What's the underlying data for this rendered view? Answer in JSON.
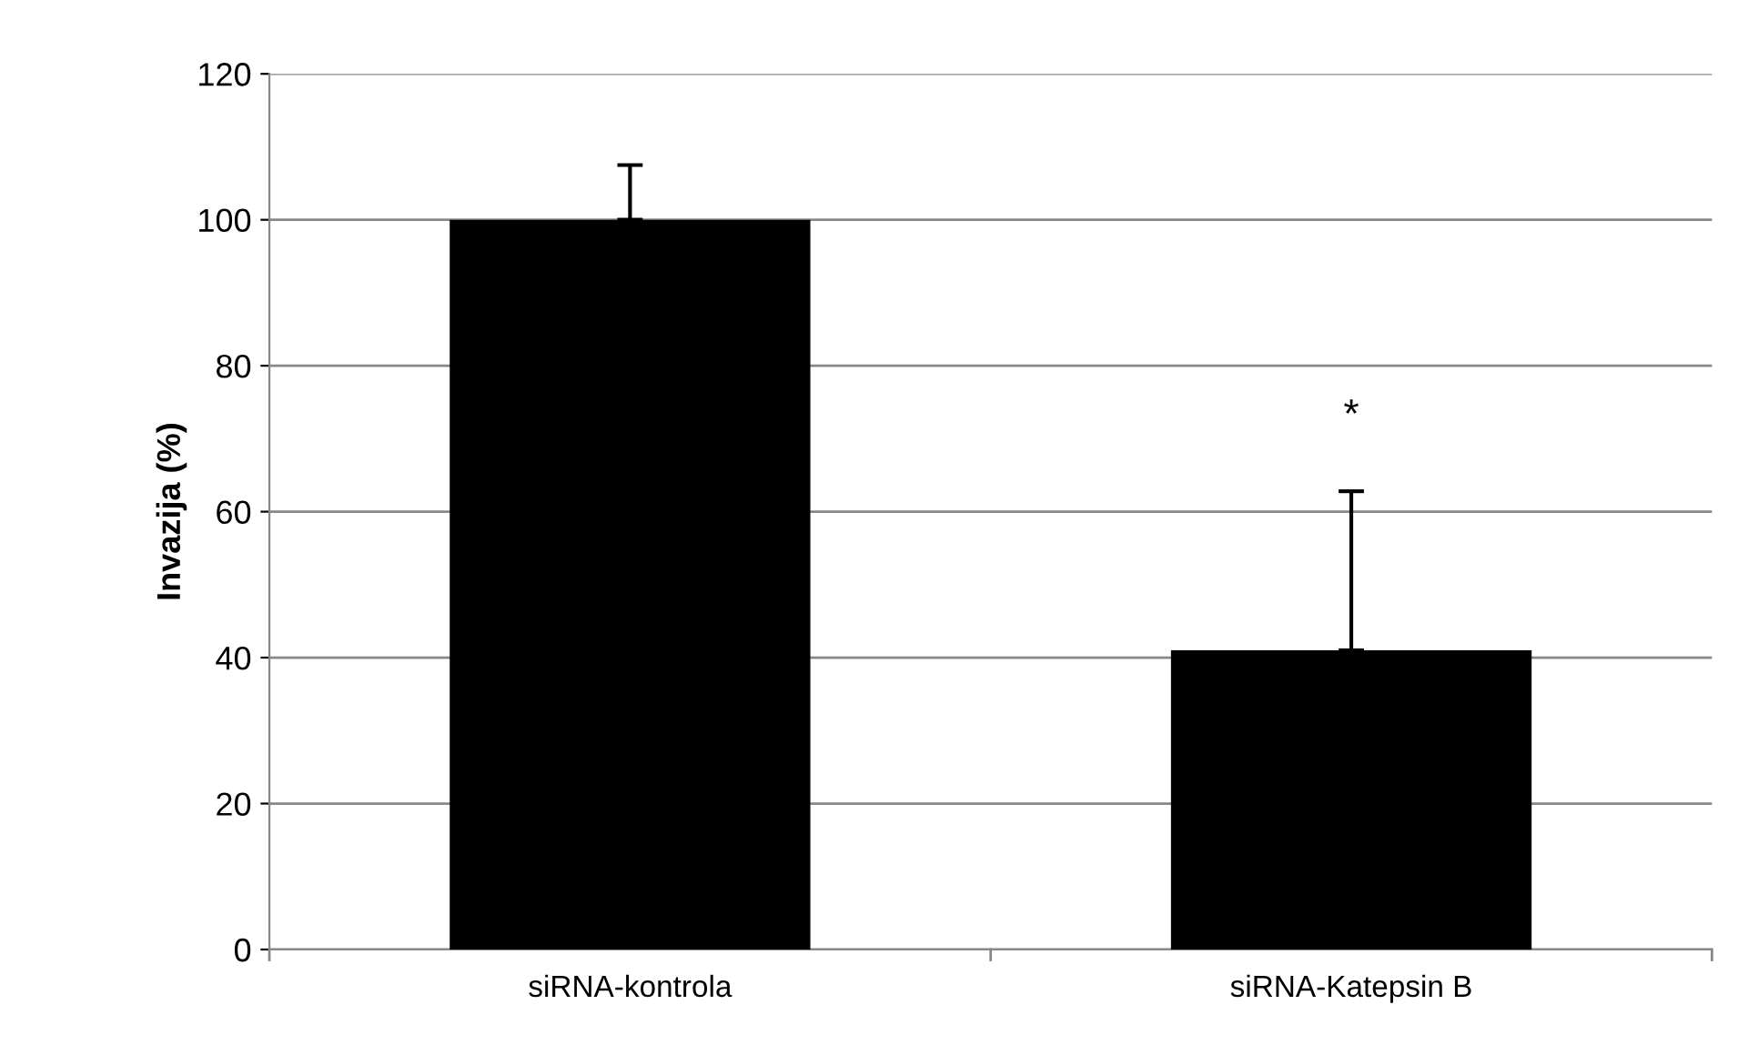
{
  "chart_data": {
    "type": "bar",
    "ylabel": "Invazija (%)",
    "categories": [
      "siRNA-kontrola",
      "siRNA-Katepsin B"
    ],
    "values": [
      100,
      41
    ],
    "errors": [
      [
        100,
        107.5
      ],
      [
        41,
        62.8
      ]
    ],
    "color": "#000000",
    "ylim": [
      0,
      120
    ],
    "yticks": [
      0,
      20,
      40,
      60,
      80,
      100,
      120
    ],
    "grid": "y",
    "annotations": [
      "*"
    ]
  }
}
